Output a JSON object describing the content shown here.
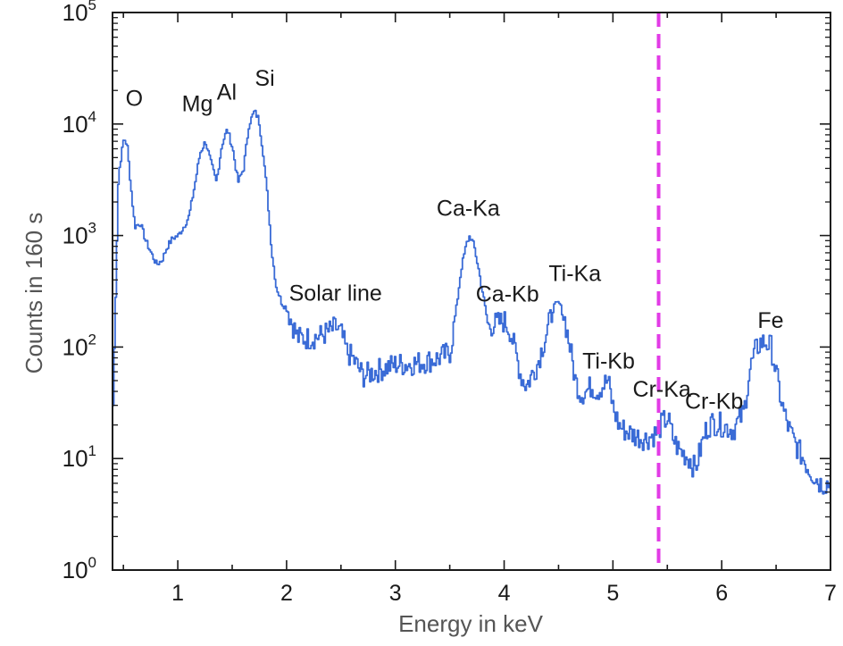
{
  "chart_data": {
    "type": "line",
    "title": "",
    "xlabel": "Energy in keV",
    "ylabel": "Counts in 160 s",
    "xlim": [
      0.4,
      7.0
    ],
    "ylim": [
      1,
      100000
    ],
    "y_scale": "log",
    "grid": false,
    "legend": "none",
    "x_ticks": [
      {
        "value": 1,
        "label": "1"
      },
      {
        "value": 2,
        "label": "2"
      },
      {
        "value": 3,
        "label": "3"
      },
      {
        "value": 4,
        "label": "4"
      },
      {
        "value": 5,
        "label": "5"
      },
      {
        "value": 6,
        "label": "6"
      },
      {
        "value": 7,
        "label": "7"
      }
    ],
    "y_ticks": [
      {
        "value": 1,
        "base": "10",
        "exp": "0"
      },
      {
        "value": 10,
        "base": "10",
        "exp": "1"
      },
      {
        "value": 100,
        "base": "10",
        "exp": "2"
      },
      {
        "value": 1000,
        "base": "10",
        "exp": "3"
      },
      {
        "value": 10000,
        "base": "10",
        "exp": "4"
      },
      {
        "value": 100000,
        "base": "10",
        "exp": "5"
      }
    ],
    "series": [
      {
        "color": "#3a6bd6",
        "x": [
          0.4,
          0.45,
          0.5,
          0.53,
          0.56,
          0.6,
          0.65,
          0.7,
          0.75,
          0.8,
          0.85,
          0.9,
          0.95,
          1.0,
          1.05,
          1.1,
          1.15,
          1.2,
          1.25,
          1.3,
          1.35,
          1.4,
          1.45,
          1.5,
          1.55,
          1.6,
          1.65,
          1.7,
          1.74,
          1.78,
          1.82,
          1.86,
          1.9,
          1.95,
          2.0,
          2.05,
          2.1,
          2.2,
          2.3,
          2.4,
          2.45,
          2.5,
          2.55,
          2.6,
          2.7,
          2.8,
          2.9,
          3.0,
          3.1,
          3.2,
          3.3,
          3.4,
          3.5,
          3.55,
          3.6,
          3.65,
          3.68,
          3.72,
          3.76,
          3.8,
          3.85,
          3.9,
          4.0,
          4.05,
          4.1,
          4.15,
          4.2,
          4.3,
          4.4,
          4.45,
          4.5,
          4.55,
          4.6,
          4.65,
          4.7,
          4.75,
          4.8,
          4.85,
          4.9,
          4.95,
          5.0,
          5.05,
          5.1,
          5.2,
          5.3,
          5.4,
          5.45,
          5.5,
          5.55,
          5.6,
          5.7,
          5.75,
          5.8,
          5.85,
          5.9,
          6.0,
          6.1,
          6.2,
          6.25,
          6.3,
          6.35,
          6.4,
          6.45,
          6.5,
          6.55,
          6.6,
          6.65,
          6.7,
          6.8,
          6.9,
          7.0
        ],
        "values": [
          30,
          3500,
          7500,
          6500,
          3000,
          1200,
          1300,
          900,
          700,
          550,
          600,
          800,
          950,
          1000,
          1200,
          1500,
          2800,
          5500,
          7000,
          4500,
          3000,
          6500,
          9000,
          6000,
          3000,
          4000,
          10000,
          13000,
          11000,
          5500,
          2200,
          700,
          350,
          250,
          220,
          160,
          120,
          120,
          125,
          140,
          150,
          130,
          90,
          80,
          55,
          60,
          65,
          70,
          70,
          72,
          75,
          80,
          90,
          200,
          500,
          850,
          1000,
          800,
          500,
          300,
          150,
          160,
          170,
          140,
          90,
          55,
          45,
          70,
          150,
          230,
          250,
          180,
          100,
          50,
          38,
          40,
          45,
          40,
          45,
          50,
          28,
          20,
          18,
          16,
          15,
          17,
          21,
          23,
          15,
          12,
          10,
          8,
          12,
          18,
          21,
          20,
          18,
          26,
          60,
          90,
          110,
          110,
          100,
          55,
          30,
          20,
          15,
          12,
          8,
          6,
          6
        ]
      }
    ],
    "reference_line": {
      "x": 5.42,
      "color": "#e23ce6",
      "style": "dashed"
    },
    "annotations": [
      {
        "text": "O",
        "x": 0.6,
        "y": 14500
      },
      {
        "text": "Mg",
        "x": 1.18,
        "y": 13000
      },
      {
        "text": "Al",
        "x": 1.45,
        "y": 16500
      },
      {
        "text": "Si",
        "x": 1.8,
        "y": 22000
      },
      {
        "text": "Solar line",
        "x": 2.45,
        "y": 260
      },
      {
        "text": "Ca-Ka",
        "x": 3.67,
        "y": 1500
      },
      {
        "text": "Ca-Kb",
        "x": 4.03,
        "y": 255
      },
      {
        "text": "Ti-Ka",
        "x": 4.65,
        "y": 390
      },
      {
        "text": "Ti-Kb",
        "x": 4.96,
        "y": 64
      },
      {
        "text": "Cr-Ka",
        "x": 5.45,
        "y": 36
      },
      {
        "text": "Cr-Kb",
        "x": 5.93,
        "y": 28
      },
      {
        "text": "Fe",
        "x": 6.45,
        "y": 148
      }
    ],
    "line_color": "#3a6bd6",
    "axis_color": "#1a1a1a",
    "tick_label_color": "#1a1a1a",
    "axis_label_color": "#555555",
    "annotation_color": "#1a1a1a"
  }
}
